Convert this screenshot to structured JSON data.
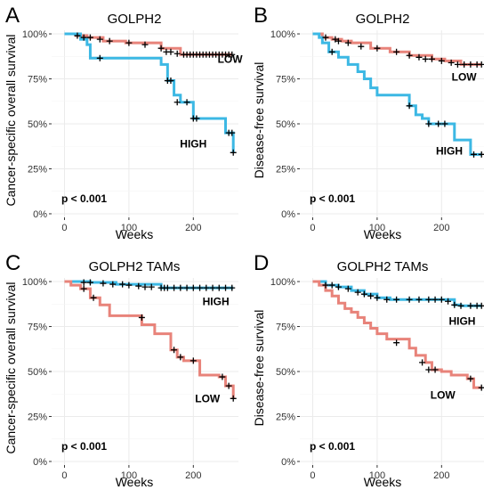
{
  "figure": {
    "x_label": "Weeks",
    "y_tick_labels": [
      "0%",
      "25%",
      "50%",
      "75%",
      "100%"
    ],
    "x_tick_labels": [
      "0",
      "100",
      "200"
    ],
    "colors": {
      "low_group": "#E8837A",
      "high_group": "#3CB8E4",
      "censor": "#000000",
      "grid": "#EBEBEB"
    }
  },
  "chart_data": [
    {
      "panel_letter": "A",
      "type": "line",
      "title": "GOLPH2",
      "ylabel": "Cancer-specific overall survival",
      "xlabel": "Weeks",
      "xlim": [
        -20,
        270
      ],
      "ylim": [
        -0.02,
        1.02
      ],
      "x_ticks": [
        0,
        100,
        200
      ],
      "y_ticks": [
        0,
        0.25,
        0.5,
        0.75,
        1.0
      ],
      "grid": true,
      "pvalue": "p < 0.001",
      "series": [
        {
          "name": "LOW",
          "color_key": "low_group",
          "label_at": [
            257,
            0.84
          ],
          "x": [
            0,
            18,
            35,
            60,
            95,
            150,
            180,
            260
          ],
          "y": [
            1.0,
            0.99,
            0.98,
            0.96,
            0.95,
            0.92,
            0.885,
            0.885
          ],
          "censored": [
            [
              20,
              0.99
            ],
            [
              30,
              0.98
            ],
            [
              40,
              0.98
            ],
            [
              55,
              0.97
            ],
            [
              70,
              0.96
            ],
            [
              100,
              0.95
            ],
            [
              125,
              0.94
            ],
            [
              150,
              0.92
            ],
            [
              158,
              0.9
            ],
            [
              165,
              0.9
            ],
            [
              175,
              0.89
            ],
            [
              185,
              0.885
            ],
            [
              190,
              0.885
            ],
            [
              195,
              0.885
            ],
            [
              200,
              0.885
            ],
            [
              205,
              0.885
            ],
            [
              210,
              0.885
            ],
            [
              215,
              0.885
            ],
            [
              220,
              0.885
            ],
            [
              225,
              0.885
            ],
            [
              230,
              0.885
            ],
            [
              235,
              0.885
            ],
            [
              240,
              0.885
            ],
            [
              245,
              0.885
            ],
            [
              250,
              0.885
            ],
            [
              255,
              0.885
            ],
            [
              260,
              0.885
            ]
          ]
        },
        {
          "name": "HIGH",
          "color_key": "high_group",
          "label_at": [
            200,
            0.37
          ],
          "x": [
            0,
            20,
            25,
            35,
            40,
            120,
            150,
            160,
            170,
            180,
            200,
            210,
            250,
            255,
            262
          ],
          "y": [
            1.0,
            1.0,
            0.97,
            0.94,
            0.865,
            0.865,
            0.83,
            0.74,
            0.66,
            0.62,
            0.53,
            0.53,
            0.45,
            0.45,
            0.34
          ],
          "censored": [
            [
              55,
              0.865
            ],
            [
              160,
              0.74
            ],
            [
              165,
              0.74
            ],
            [
              175,
              0.62
            ],
            [
              190,
              0.62
            ],
            [
              200,
              0.53
            ],
            [
              205,
              0.53
            ],
            [
              255,
              0.45
            ],
            [
              260,
              0.45
            ],
            [
              262,
              0.34
            ]
          ]
        }
      ]
    },
    {
      "panel_letter": "B",
      "type": "line",
      "title": "GOLPH2",
      "ylabel": "Disease-free survival",
      "xlabel": "Weeks",
      "xlim": [
        -20,
        270
      ],
      "ylim": [
        -0.02,
        1.02
      ],
      "x_ticks": [
        0,
        100,
        200
      ],
      "y_ticks": [
        0,
        0.25,
        0.5,
        0.75,
        1.0
      ],
      "grid": true,
      "pvalue": "p < 0.001",
      "series": [
        {
          "name": "LOW",
          "color_key": "low_group",
          "label_at": [
            235,
            0.74
          ],
          "x": [
            0,
            15,
            30,
            45,
            60,
            90,
            120,
            150,
            185,
            205,
            230,
            262
          ],
          "y": [
            1.0,
            0.98,
            0.97,
            0.96,
            0.95,
            0.92,
            0.9,
            0.88,
            0.86,
            0.85,
            0.83,
            0.83
          ],
          "censored": [
            [
              20,
              0.98
            ],
            [
              35,
              0.97
            ],
            [
              40,
              0.96
            ],
            [
              55,
              0.95
            ],
            [
              75,
              0.93
            ],
            [
              100,
              0.92
            ],
            [
              130,
              0.9
            ],
            [
              150,
              0.88
            ],
            [
              165,
              0.87
            ],
            [
              175,
              0.86
            ],
            [
              185,
              0.86
            ],
            [
              200,
              0.85
            ],
            [
              215,
              0.84
            ],
            [
              225,
              0.83
            ],
            [
              235,
              0.83
            ],
            [
              245,
              0.83
            ],
            [
              255,
              0.83
            ],
            [
              262,
              0.83
            ]
          ]
        },
        {
          "name": "HIGH",
          "color_key": "high_group",
          "label_at": [
            212,
            0.33
          ],
          "x": [
            0,
            10,
            15,
            25,
            40,
            55,
            70,
            80,
            90,
            100,
            130,
            150,
            160,
            170,
            180,
            220,
            245,
            262
          ],
          "y": [
            1.0,
            0.98,
            0.95,
            0.9,
            0.87,
            0.83,
            0.79,
            0.75,
            0.7,
            0.66,
            0.66,
            0.6,
            0.55,
            0.53,
            0.5,
            0.41,
            0.33,
            0.33
          ],
          "censored": [
            [
              30,
              0.9
            ],
            [
              150,
              0.6
            ],
            [
              180,
              0.5
            ],
            [
              195,
              0.5
            ],
            [
              205,
              0.5
            ],
            [
              250,
              0.33
            ],
            [
              262,
              0.33
            ]
          ]
        }
      ]
    },
    {
      "panel_letter": "C",
      "type": "line",
      "title": "GOLPH2 TAMs",
      "ylabel": "Cancer-specific overall survival",
      "xlabel": "Weeks",
      "xlim": [
        -20,
        270
      ],
      "ylim": [
        -0.02,
        1.02
      ],
      "x_ticks": [
        0,
        100,
        200
      ],
      "y_ticks": [
        0,
        0.25,
        0.5,
        0.75,
        1.0
      ],
      "grid": true,
      "pvalue": "p < 0.001",
      "series": [
        {
          "name": "HIGH",
          "color_key": "high_group",
          "label_at": [
            235,
            0.87
          ],
          "x": [
            0,
            40,
            80,
            150,
            262
          ],
          "y": [
            1.0,
            0.995,
            0.985,
            0.965,
            0.965
          ],
          "censored": [
            [
              30,
              0.995
            ],
            [
              40,
              0.995
            ],
            [
              60,
              0.99
            ],
            [
              75,
              0.985
            ],
            [
              90,
              0.985
            ],
            [
              100,
              0.98
            ],
            [
              115,
              0.975
            ],
            [
              125,
              0.97
            ],
            [
              135,
              0.97
            ],
            [
              150,
              0.965
            ],
            [
              155,
              0.965
            ],
            [
              160,
              0.965
            ],
            [
              170,
              0.965
            ],
            [
              180,
              0.965
            ],
            [
              190,
              0.965
            ],
            [
              200,
              0.965
            ],
            [
              210,
              0.965
            ],
            [
              220,
              0.965
            ],
            [
              230,
              0.965
            ],
            [
              240,
              0.965
            ],
            [
              250,
              0.965
            ],
            [
              260,
              0.965
            ]
          ]
        },
        {
          "name": "LOW",
          "color_key": "low_group",
          "label_at": [
            222,
            0.33
          ],
          "x": [
            0,
            10,
            25,
            40,
            55,
            70,
            120,
            140,
            165,
            175,
            185,
            210,
            240,
            250,
            262
          ],
          "y": [
            1.0,
            0.98,
            0.96,
            0.91,
            0.87,
            0.81,
            0.76,
            0.71,
            0.62,
            0.58,
            0.56,
            0.48,
            0.47,
            0.42,
            0.35
          ],
          "censored": [
            [
              30,
              0.96
            ],
            [
              45,
              0.91
            ],
            [
              120,
              0.8
            ],
            [
              170,
              0.62
            ],
            [
              180,
              0.58
            ],
            [
              200,
              0.56
            ],
            [
              245,
              0.47
            ],
            [
              255,
              0.42
            ],
            [
              262,
              0.35
            ]
          ]
        }
      ]
    },
    {
      "panel_letter": "D",
      "type": "line",
      "title": "GOLPH2 TAMs",
      "ylabel": "Disease-free survival",
      "xlabel": "Weeks",
      "xlim": [
        -20,
        270
      ],
      "ylim": [
        -0.02,
        1.02
      ],
      "x_ticks": [
        0,
        100,
        200
      ],
      "y_ticks": [
        0,
        0.25,
        0.5,
        0.75,
        1.0
      ],
      "grid": true,
      "pvalue": "p < 0.001",
      "series": [
        {
          "name": "HIGH",
          "color_key": "high_group",
          "label_at": [
            232,
            0.76
          ],
          "x": [
            0,
            20,
            40,
            60,
            80,
            100,
            120,
            150,
            220,
            230,
            262
          ],
          "y": [
            1.0,
            0.98,
            0.97,
            0.95,
            0.93,
            0.91,
            0.9,
            0.9,
            0.87,
            0.865,
            0.865
          ],
          "censored": [
            [
              20,
              0.98
            ],
            [
              30,
              0.98
            ],
            [
              40,
              0.97
            ],
            [
              55,
              0.96
            ],
            [
              70,
              0.94
            ],
            [
              80,
              0.93
            ],
            [
              90,
              0.92
            ],
            [
              100,
              0.91
            ],
            [
              115,
              0.9
            ],
            [
              130,
              0.9
            ],
            [
              150,
              0.9
            ],
            [
              165,
              0.9
            ],
            [
              180,
              0.9
            ],
            [
              190,
              0.9
            ],
            [
              200,
              0.9
            ],
            [
              210,
              0.89
            ],
            [
              220,
              0.87
            ],
            [
              230,
              0.865
            ],
            [
              245,
              0.865
            ],
            [
              255,
              0.865
            ],
            [
              262,
              0.865
            ]
          ]
        },
        {
          "name": "LOW",
          "color_key": "low_group",
          "label_at": [
            202,
            0.35
          ],
          "x": [
            0,
            10,
            20,
            30,
            40,
            50,
            60,
            70,
            80,
            90,
            100,
            115,
            150,
            160,
            175,
            185,
            200,
            215,
            240,
            250,
            262
          ],
          "y": [
            1.0,
            0.98,
            0.95,
            0.92,
            0.88,
            0.85,
            0.83,
            0.8,
            0.77,
            0.74,
            0.71,
            0.68,
            0.63,
            0.59,
            0.55,
            0.51,
            0.5,
            0.48,
            0.46,
            0.41,
            0.41
          ],
          "censored": [
            [
              130,
              0.66
            ],
            [
              170,
              0.55
            ],
            [
              180,
              0.51
            ],
            [
              190,
              0.51
            ],
            [
              245,
              0.46
            ],
            [
              262,
              0.41
            ]
          ]
        }
      ]
    }
  ]
}
